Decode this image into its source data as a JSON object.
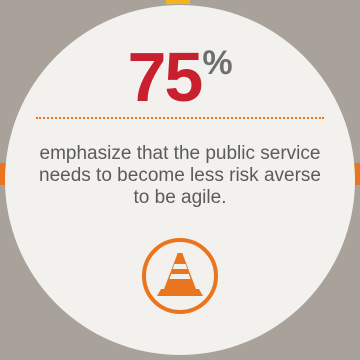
{
  "stat": {
    "number": "75",
    "unit": "%"
  },
  "statement": "emphasize that the public service needs to become less risk averse to be agile.",
  "icon": "traffic-cone-icon",
  "colors": {
    "background": "#a8a29a",
    "circle": "#f3f1ee",
    "number": "#c8202f",
    "percent": "#6f6f6f",
    "accent": "#e9761f",
    "top_accent": "#f2b51e",
    "text": "#5b5b5b"
  }
}
